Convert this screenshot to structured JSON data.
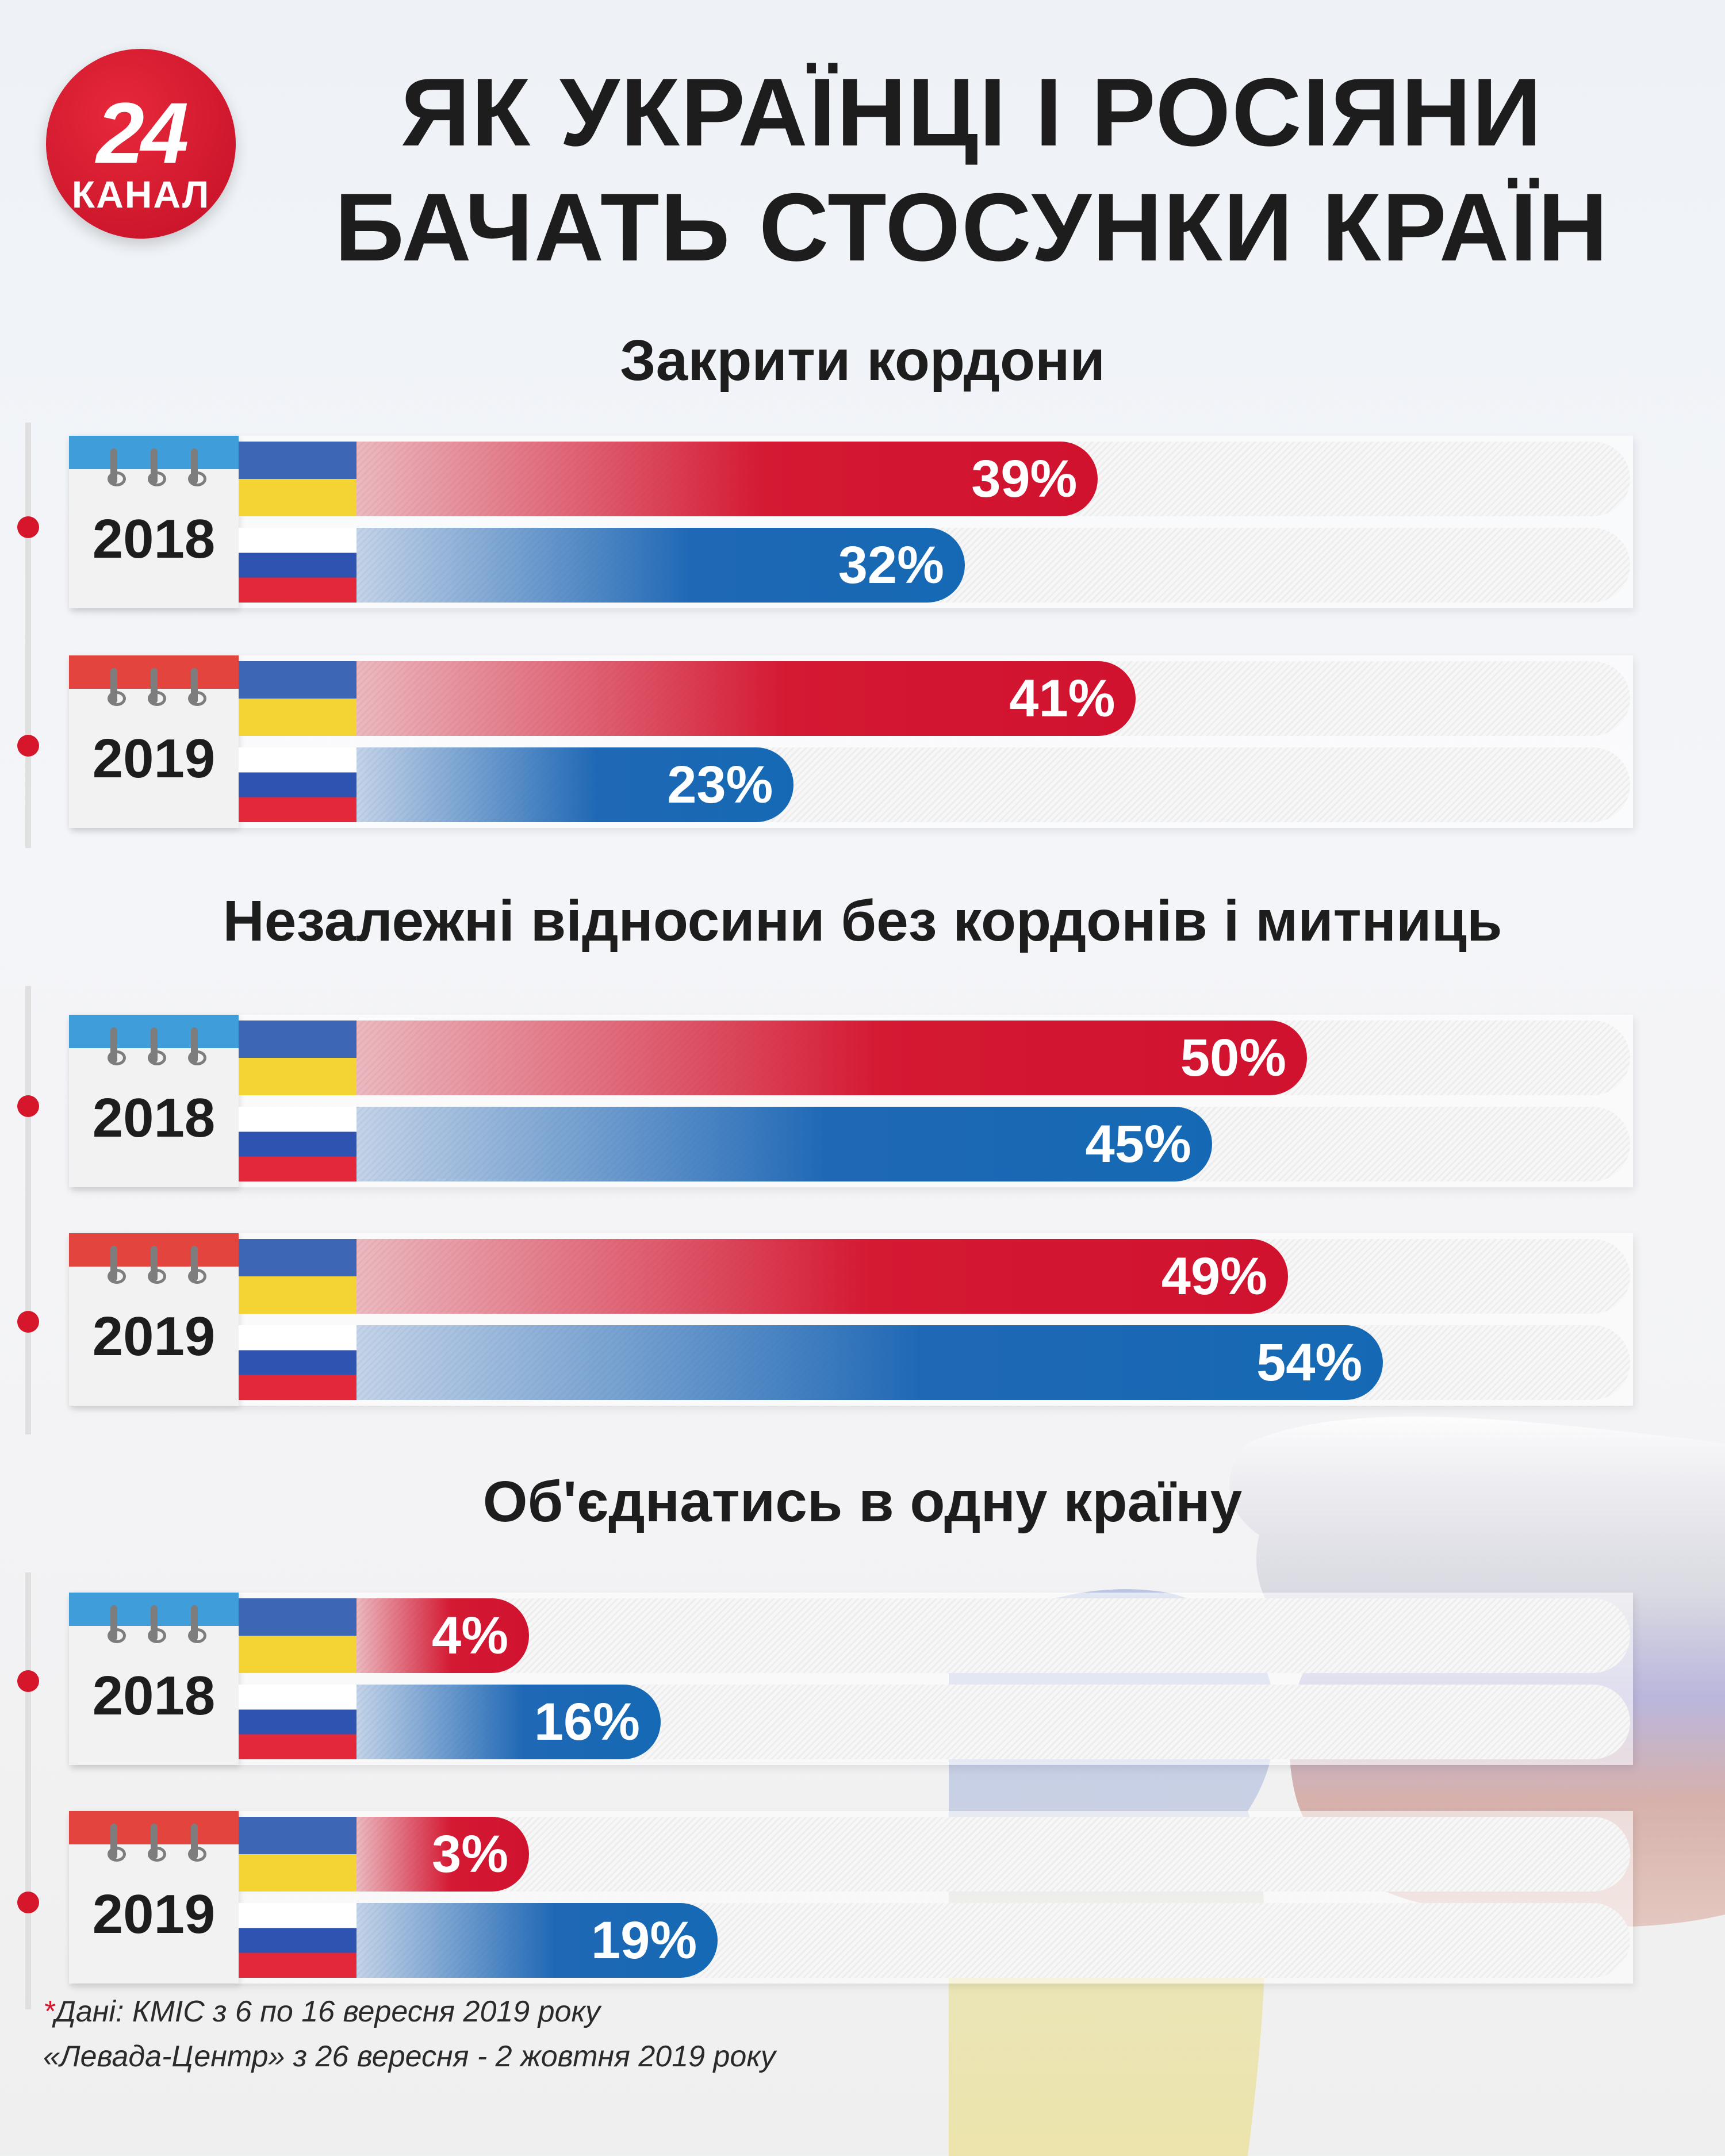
{
  "logo": {
    "number": "24",
    "name": "КАНАЛ"
  },
  "title_lines": [
    "ЯК УКРАЇНЦІ І РОСІЯНИ",
    "БАЧАТЬ СТОСУНКИ КРАЇН"
  ],
  "colors": {
    "ukraine_bar": "#d41933",
    "russia_bar": "#1f68b5",
    "accent": "#d6162b"
  },
  "chart_data": [
    {
      "type": "bar",
      "title": "Закрити кордони",
      "categories": [
        "2018",
        "2019"
      ],
      "series": [
        {
          "name": "Україна",
          "values": [
            39,
            41
          ]
        },
        {
          "name": "Росія",
          "values": [
            32,
            23
          ]
        }
      ],
      "labels": [
        [
          "39%",
          "32%"
        ],
        [
          "41%",
          "23%"
        ]
      ],
      "ylim": [
        0,
        67
      ]
    },
    {
      "type": "bar",
      "title": "Незалежні відносини без кордонів і митниць",
      "categories": [
        "2018",
        "2019"
      ],
      "series": [
        {
          "name": "Україна",
          "values": [
            50,
            49
          ]
        },
        {
          "name": "Росія",
          "values": [
            45,
            54
          ]
        }
      ],
      "labels": [
        [
          "50%",
          "45%"
        ],
        [
          "49%",
          "54%"
        ]
      ],
      "ylim": [
        0,
        67
      ]
    },
    {
      "type": "bar",
      "title": "Об'єднатись в одну країну",
      "categories": [
        "2018",
        "2019"
      ],
      "series": [
        {
          "name": "Україна",
          "values": [
            4,
            3
          ]
        },
        {
          "name": "Росія",
          "values": [
            16,
            19
          ]
        }
      ],
      "labels": [
        [
          "4%",
          "16%"
        ],
        [
          "3%",
          "19%"
        ]
      ],
      "ylim": [
        0,
        67
      ]
    }
  ],
  "footnote": {
    "star": "*",
    "line1": "Дані: КМІС з 6 по 16 вересня 2019 року",
    "line2": "«Левада-Центр» з 26 вересня - 2 жовтня 2019 року"
  }
}
